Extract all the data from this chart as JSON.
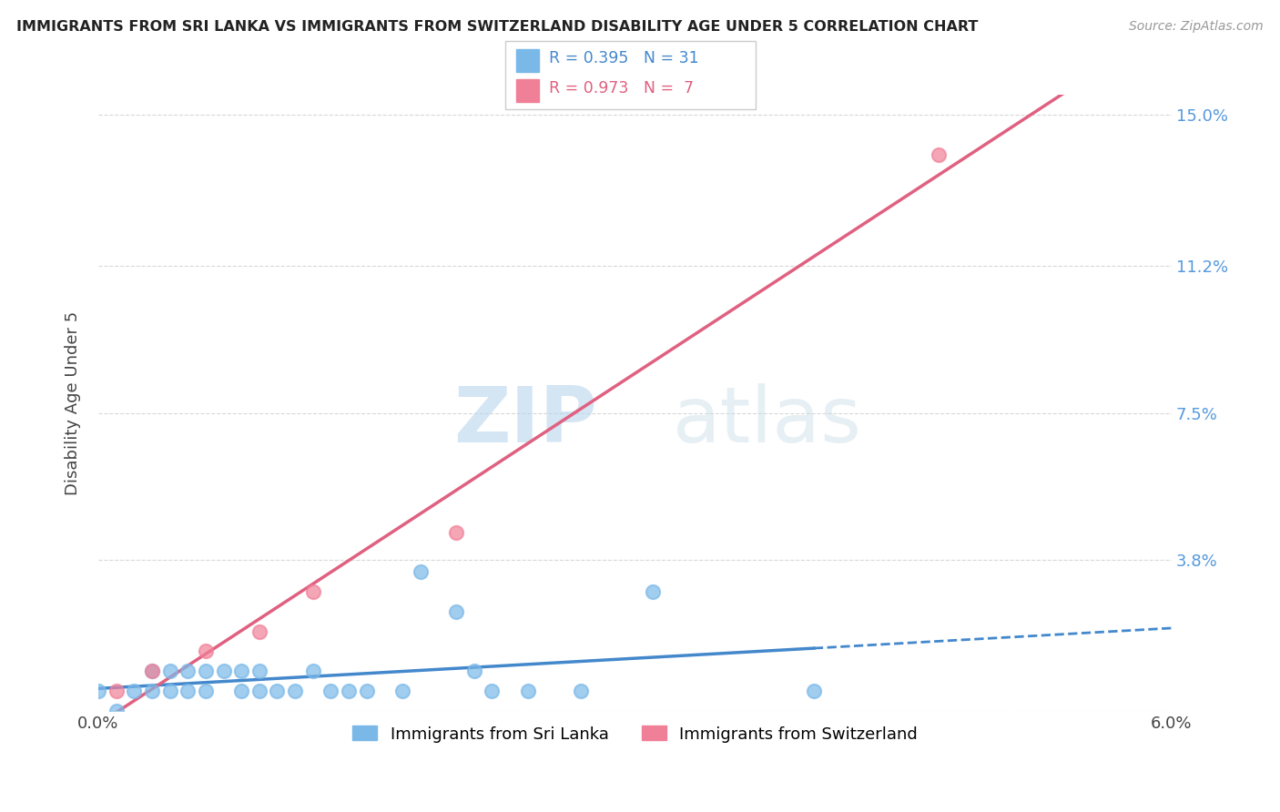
{
  "title": "IMMIGRANTS FROM SRI LANKA VS IMMIGRANTS FROM SWITZERLAND DISABILITY AGE UNDER 5 CORRELATION CHART",
  "source": "Source: ZipAtlas.com",
  "ylabel_label": "Disability Age Under 5",
  "xmin": 0.0,
  "xmax": 0.06,
  "ymin": 0.0,
  "ymax": 0.155,
  "sri_lanka_color": "#7ab8e8",
  "switzerland_color": "#f08098",
  "sri_lanka_line_color": "#4488cc",
  "switzerland_line_color": "#e06080",
  "sri_lanka_R": 0.395,
  "sri_lanka_N": 31,
  "switzerland_R": 0.973,
  "switzerland_N": 7,
  "sri_lanka_x": [
    0.0,
    0.001,
    0.002,
    0.003,
    0.003,
    0.004,
    0.004,
    0.005,
    0.005,
    0.006,
    0.006,
    0.007,
    0.008,
    0.008,
    0.009,
    0.009,
    0.01,
    0.011,
    0.012,
    0.013,
    0.014,
    0.015,
    0.017,
    0.018,
    0.02,
    0.021,
    0.022,
    0.024,
    0.027,
    0.031,
    0.04
  ],
  "sri_lanka_y": [
    0.005,
    0.0,
    0.005,
    0.005,
    0.01,
    0.005,
    0.01,
    0.005,
    0.01,
    0.005,
    0.01,
    0.01,
    0.005,
    0.01,
    0.005,
    0.01,
    0.005,
    0.005,
    0.01,
    0.005,
    0.005,
    0.005,
    0.005,
    0.035,
    0.025,
    0.01,
    0.005,
    0.005,
    0.005,
    0.03,
    0.005
  ],
  "switzerland_x": [
    0.001,
    0.003,
    0.006,
    0.009,
    0.012,
    0.02,
    0.047
  ],
  "switzerland_y": [
    0.005,
    0.01,
    0.015,
    0.02,
    0.03,
    0.045,
    0.14
  ],
  "watermark_zip": "ZIP",
  "watermark_atlas": "atlas",
  "background_color": "#ffffff",
  "grid_color": "#d8d8d8",
  "ytick_vals": [
    0.0,
    0.038,
    0.075,
    0.112,
    0.15
  ],
  "ytick_labels": [
    "",
    "3.8%",
    "7.5%",
    "11.2%",
    "15.0%"
  ],
  "xtick_vals": [
    0.0,
    0.06
  ],
  "xtick_labels": [
    "0.0%",
    "6.0%"
  ]
}
